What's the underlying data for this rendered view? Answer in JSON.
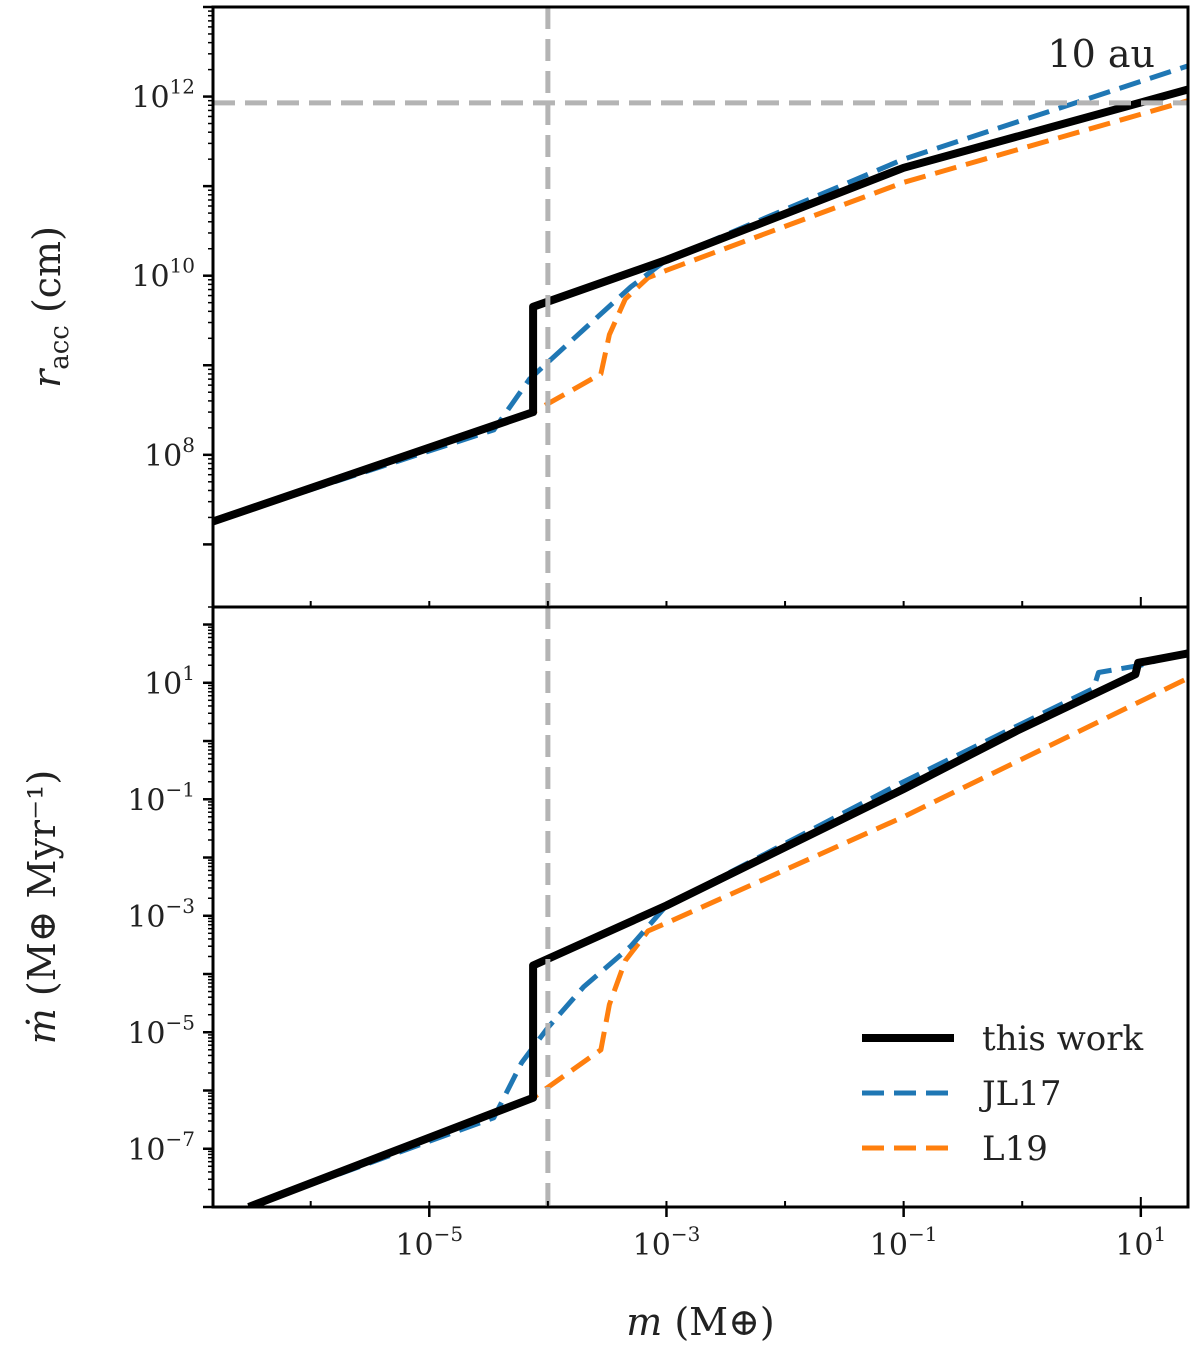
{
  "chart_data": [
    {
      "type": "line",
      "panel": "top",
      "xscale": "log",
      "yscale": "log",
      "xlim": [
        1.5e-07,
        25
      ],
      "ylim": [
        2000000.0,
        10000000000000.0
      ],
      "ylabel": "r_acc (cm)",
      "ylabel_main": "r",
      "ylabel_sub": "acc",
      "ylabel_unit": " (cm)",
      "annotation": "10 au",
      "yticks": [
        {
          "value": 100000000.0,
          "base": "10",
          "exp": "8"
        },
        {
          "value": 10000000000.0,
          "base": "10",
          "exp": "10"
        },
        {
          "value": 1000000000000.0,
          "base": "10",
          "exp": "12"
        }
      ],
      "reference_lines": {
        "vertical_x": 0.0001,
        "horizontal_y": 850000000000.0
      },
      "series": [
        {
          "name": "this work",
          "color": "#000000",
          "style": "solid",
          "points": [
            [
              1.5e-07,
              18000000.0
            ],
            [
              7.5e-05,
              300000000.0
            ],
            [
              7.5e-05,
              4500000000.0
            ],
            [
              0.001,
              15000000000.0
            ],
            [
              0.1,
              160000000000.0
            ],
            [
              25,
              1200000000000.0
            ]
          ]
        },
        {
          "name": "JL17",
          "color": "#1f77b4",
          "style": "dashed",
          "points": [
            [
              1.5e-07,
              18000000.0
            ],
            [
              3.5e-05,
              190000000.0
            ],
            [
              7e-05,
              700000000.0
            ],
            [
              0.0002,
              2500000000.0
            ],
            [
              0.0005,
              7500000000.0
            ],
            [
              0.001,
              15000000000.0
            ],
            [
              0.1,
              200000000000.0
            ],
            [
              25,
              2200000000000.0
            ]
          ]
        },
        {
          "name": "L19",
          "color": "#ff7f0e",
          "style": "dashed",
          "points": [
            [
              1.5e-07,
              18000000.0
            ],
            [
              7.5e-05,
              300000000.0
            ],
            [
              0.00028,
              800000000.0
            ],
            [
              0.00033,
              2200000000.0
            ],
            [
              0.00045,
              5500000000.0
            ],
            [
              0.0007,
              9500000000.0
            ],
            [
              0.001,
              11500000000.0
            ],
            [
              0.1,
              110000000000.0
            ],
            [
              25,
              900000000000.0
            ]
          ]
        }
      ]
    },
    {
      "type": "line",
      "panel": "bottom",
      "xscale": "log",
      "yscale": "log",
      "xlim": [
        1.5e-07,
        25
      ],
      "ylim": [
        1e-08,
        200
      ],
      "xlabel": "m (M⊕)",
      "xlabel_main": "m",
      "xlabel_unit": " (M⊕)",
      "ylabel": "ṁ (M⊕ Myr⁻¹)",
      "ylabel_main": "ṁ",
      "ylabel_unit": " (M⊕ Myr⁻¹)",
      "xticks": [
        {
          "value": 1e-05,
          "base": "10",
          "exp": "−5"
        },
        {
          "value": 0.001,
          "base": "10",
          "exp": "−3"
        },
        {
          "value": 0.1,
          "base": "10",
          "exp": "−1"
        },
        {
          "value": 10,
          "base": "10",
          "exp": "1"
        }
      ],
      "yticks": [
        {
          "value": 1e-07,
          "base": "10",
          "exp": "−7"
        },
        {
          "value": 1e-05,
          "base": "10",
          "exp": "−5"
        },
        {
          "value": 0.001,
          "base": "10",
          "exp": "−3"
        },
        {
          "value": 0.1,
          "base": "10",
          "exp": "−1"
        },
        {
          "value": 10,
          "base": "10",
          "exp": "1"
        }
      ],
      "reference_lines": {
        "vertical_x": 0.0001
      },
      "legend_position": "bottom-right",
      "series": [
        {
          "name": "this work",
          "color": "#000000",
          "style": "solid",
          "points": [
            [
              3e-07,
              1e-08
            ],
            [
              7.5e-05,
              7.5e-07
            ],
            [
              7.5e-05,
              0.00014
            ],
            [
              0.001,
              0.0015
            ],
            [
              0.1,
              0.15
            ],
            [
              0.9,
              1.5
            ],
            [
              9,
              14
            ],
            [
              9.5,
              22
            ],
            [
              25,
              32
            ]
          ]
        },
        {
          "name": "JL17",
          "color": "#1f77b4",
          "style": "dashed",
          "points": [
            [
              3e-07,
              1e-08
            ],
            [
              3.5e-05,
              3.4e-07
            ],
            [
              6e-05,
              3e-06
            ],
            [
              0.0001,
              1.2e-05
            ],
            [
              0.0002,
              6e-05
            ],
            [
              0.0005,
              0.0003
            ],
            [
              0.001,
              0.0015
            ],
            [
              0.1,
              0.2
            ],
            [
              4,
              8
            ],
            [
              4.4,
              15
            ],
            [
              10,
              20
            ],
            [
              25,
              34
            ]
          ]
        },
        {
          "name": "L19",
          "color": "#ff7f0e",
          "style": "dashed",
          "points": [
            [
              3e-07,
              1e-08
            ],
            [
              7.5e-05,
              7.5e-07
            ],
            [
              0.00028,
              5e-06
            ],
            [
              0.00033,
              3e-05
            ],
            [
              0.00045,
              0.00017
            ],
            [
              0.0007,
              0.00055
            ],
            [
              0.001,
              0.00075
            ],
            [
              0.1,
              0.05
            ],
            [
              25,
              12
            ]
          ]
        }
      ]
    }
  ],
  "legend": {
    "items": [
      {
        "label": "this work",
        "color": "#000000",
        "style": "solid"
      },
      {
        "label": "JL17",
        "color": "#1f77b4",
        "style": "dashed"
      },
      {
        "label": "L19",
        "color": "#ff7f0e",
        "style": "dashed"
      }
    ]
  }
}
